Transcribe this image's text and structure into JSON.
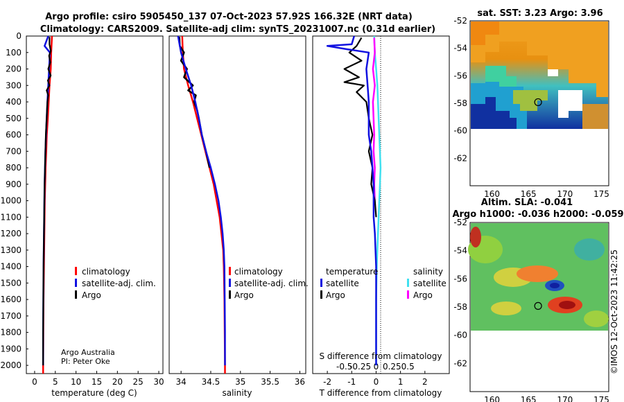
{
  "title_line1": "Argo profile: csiro 5905450_137 07-Oct-2023 57.92S 166.32E (NRT data)",
  "title_line2": "Climatology: CARS2009. Satellite-adj clim: synTS_20231007.nc (0.31d earlier)",
  "credit_line1": "Argo Australia",
  "credit_line2": "PI: Peter Oke",
  "imos_label": "©IMOS 12-Oct-2023 11:42:25",
  "colors": {
    "climatology": "#ff0000",
    "satellite": "#1010e0",
    "argo": "#000000",
    "sat_salinity": "#40e0f0",
    "argo_salinity": "#ff00ff"
  },
  "chart_data": [
    {
      "type": "line",
      "id": "temperature",
      "xlabel": "temperature (deg C)",
      "ylabel": "",
      "xlim": [
        -2,
        31
      ],
      "ylim": [
        0,
        2050
      ],
      "xticks": [
        0,
        5,
        10,
        15,
        20,
        25,
        30
      ],
      "yticks": [
        0,
        100,
        200,
        300,
        400,
        500,
        600,
        700,
        800,
        900,
        1000,
        1100,
        1200,
        1300,
        1400,
        1500,
        1600,
        1700,
        1800,
        1900,
        2000
      ],
      "legend": [
        "climatology",
        "satellite-adj. clim.",
        "Argo"
      ],
      "series": [
        {
          "name": "climatology",
          "depth": [
            0,
            100,
            200,
            300,
            400,
            500,
            600,
            700,
            800,
            900,
            1000,
            1200,
            1400,
            1600,
            1800,
            2000,
            2050
          ],
          "values": [
            4.2,
            4.0,
            3.9,
            3.6,
            3.4,
            3.2,
            2.95,
            2.8,
            2.65,
            2.55,
            2.45,
            2.35,
            2.25,
            2.15,
            2.1,
            2.05,
            2.05
          ]
        },
        {
          "name": "satellite-adj. clim.",
          "depth": [
            0,
            60,
            100,
            200,
            300,
            400,
            500,
            600,
            700,
            800,
            900,
            1000,
            1200,
            1400,
            1600,
            1800,
            2000
          ],
          "values": [
            3.3,
            2.4,
            3.7,
            3.5,
            3.3,
            3.1,
            2.9,
            2.75,
            2.6,
            2.5,
            2.4,
            2.35,
            2.25,
            2.15,
            2.1,
            2.05,
            2.05
          ]
        },
        {
          "name": "Argo",
          "depth": [
            5,
            50,
            90,
            120,
            160,
            200,
            240,
            270,
            300,
            330,
            360,
            400,
            450,
            500,
            600,
            700,
            800,
            900,
            1000,
            1200,
            1400,
            1600,
            1800,
            2000
          ],
          "values": [
            3.6,
            3.6,
            3.9,
            3.5,
            3.8,
            3.3,
            3.9,
            3.2,
            3.6,
            2.9,
            3.3,
            3.1,
            3.0,
            2.9,
            2.7,
            2.6,
            2.5,
            2.4,
            2.35,
            2.25,
            2.15,
            2.1,
            2.05,
            2.05
          ]
        }
      ]
    },
    {
      "type": "line",
      "id": "salinity",
      "xlabel": "salinity",
      "xlim": [
        33.8,
        36.1
      ],
      "ylim": [
        0,
        2050
      ],
      "xticks": [
        34,
        34.5,
        35,
        35.5,
        36
      ],
      "xtick_labels": [
        "34",
        "34.5",
        "35",
        "35.5",
        "36"
      ],
      "legend": [
        "climatology",
        "satellite-adj. clim.",
        "Argo"
      ],
      "series": [
        {
          "name": "climatology",
          "depth": [
            0,
            100,
            200,
            300,
            400,
            500,
            600,
            700,
            800,
            900,
            1000,
            1100,
            1200,
            1300,
            1400,
            1600,
            1800,
            2000,
            2050
          ],
          "values": [
            34.02,
            34.03,
            34.05,
            34.12,
            34.2,
            34.27,
            34.34,
            34.41,
            34.48,
            34.55,
            34.6,
            34.65,
            34.68,
            34.71,
            34.72,
            34.73,
            34.735,
            34.74,
            34.74
          ]
        },
        {
          "name": "satellite-adj. clim.",
          "depth": [
            0,
            100,
            200,
            300,
            400,
            500,
            600,
            700,
            800,
            900,
            1000,
            1100,
            1200,
            1300,
            1400,
            1600,
            1800,
            2000
          ],
          "values": [
            33.95,
            34.0,
            34.08,
            34.17,
            34.24,
            34.3,
            34.35,
            34.42,
            34.5,
            34.57,
            34.63,
            34.67,
            34.7,
            34.72,
            34.73,
            34.735,
            34.74,
            34.74
          ]
        },
        {
          "name": "Argo",
          "depth": [
            5,
            60,
            100,
            150,
            200,
            250,
            300,
            330,
            360,
            400,
            450,
            500,
            600,
            700,
            800
          ],
          "values": [
            33.97,
            33.98,
            34.05,
            34.0,
            34.1,
            34.05,
            34.2,
            34.12,
            34.25,
            34.22,
            34.27,
            34.3,
            34.35,
            34.42,
            34.48
          ]
        }
      ]
    },
    {
      "type": "line",
      "id": "difference",
      "xlabel": "T difference from climatology",
      "xlabel2": "S difference from climatology",
      "xlim": [
        -2.6,
        3
      ],
      "ylim": [
        0,
        2050
      ],
      "xticks": [
        -2,
        -1,
        0,
        1,
        2
      ],
      "xtick_labels": [
        "-2",
        "-1",
        "0",
        "1",
        "2"
      ],
      "s_ticks": [
        -0.5,
        -0.25,
        0,
        0.25,
        0.5
      ],
      "s_tick_labels": [
        "-0.5",
        "-0.25",
        "0",
        "0.25",
        "0.5"
      ],
      "legend_left_title": "temperature",
      "legend_right_title": "salinity",
      "legend_left": [
        "satellite",
        "Argo"
      ],
      "legend_right": [
        "satellite",
        "Argo"
      ],
      "series": [
        {
          "name": "T satellite",
          "depth": [
            0,
            50,
            60,
            80,
            100,
            200,
            300,
            400,
            500,
            600,
            700,
            800,
            900,
            1000,
            1100,
            1200,
            1400,
            1600,
            1800,
            2000
          ],
          "values": [
            -0.9,
            -1.0,
            -2.0,
            -1.2,
            -0.3,
            -0.4,
            -0.35,
            -0.3,
            -0.3,
            -0.3,
            -0.2,
            -0.15,
            -0.1,
            -0.1,
            -0.1,
            -0.05,
            0,
            0,
            0,
            0
          ]
        },
        {
          "name": "T Argo",
          "depth": [
            10,
            60,
            100,
            150,
            200,
            250,
            280,
            300,
            340,
            400,
            500,
            600,
            700,
            800,
            900,
            1000,
            1100
          ],
          "values": [
            -0.6,
            -0.8,
            -1.1,
            -0.6,
            -1.3,
            -0.7,
            -1.3,
            -0.5,
            -0.8,
            -0.4,
            -0.3,
            -0.15,
            -0.3,
            -0.15,
            -0.2,
            -0.05,
            0
          ]
        },
        {
          "name": "S satellite",
          "depth": [
            0,
            100,
            200,
            300,
            400,
            500,
            600,
            700,
            800,
            900,
            1000,
            1200,
            1400,
            1600,
            1800,
            2000
          ],
          "values": [
            -0.03,
            -0.02,
            0,
            0.02,
            0.03,
            0.04,
            0.05,
            0.06,
            0.07,
            0.06,
            0.05,
            0.03,
            0.01,
            0,
            0,
            0
          ]
        },
        {
          "name": "S Argo",
          "depth": [
            10,
            100,
            200,
            300,
            400,
            500,
            600,
            700,
            800,
            900,
            1000
          ],
          "values": [
            -0.03,
            -0.02,
            -0.05,
            -0.02,
            -0.05,
            -0.04,
            -0.03,
            -0.04,
            -0.02,
            -0.03,
            -0.02
          ]
        }
      ]
    },
    {
      "type": "heatmap",
      "id": "sst_map",
      "title": "sat. SST: 3.23 Argo: 3.96",
      "xlim": [
        157,
        176
      ],
      "ylim": [
        -64,
        -52
      ],
      "xticks": [
        160,
        165,
        170,
        175
      ],
      "yticks": [
        -52,
        -54,
        -56,
        -58,
        -60,
        -62
      ],
      "marker": {
        "lon": 166.32,
        "lat": -57.92
      }
    },
    {
      "type": "heatmap",
      "id": "sla_map",
      "title_line1": "Altim. SLA: -0.041",
      "title_line2": "Argo h1000: -0.036 h2000: -0.059",
      "xlim": [
        157,
        176
      ],
      "ylim": [
        -64,
        -52
      ],
      "xticks": [
        160,
        165,
        170,
        175
      ],
      "yticks": [
        -52,
        -54,
        -56,
        -58,
        -60,
        -62
      ],
      "marker": {
        "lon": 166.32,
        "lat": -57.92
      }
    }
  ]
}
